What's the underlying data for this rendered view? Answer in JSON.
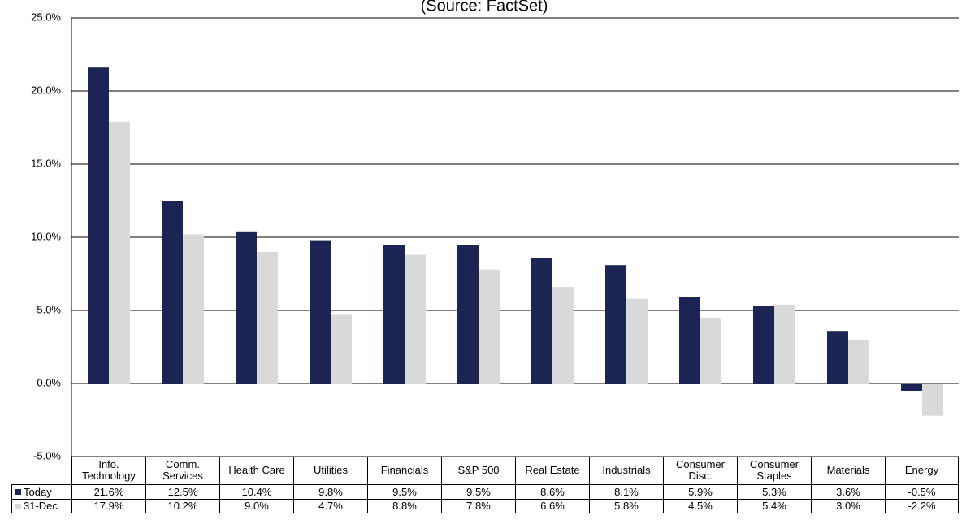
{
  "chart_data": {
    "type": "bar",
    "subtitle": "(Source: FactSet)",
    "categories": [
      "Info. Technology",
      "Comm. Services",
      "Health Care",
      "Utilities",
      "Financials",
      "S&P 500",
      "Real Estate",
      "Industrials",
      "Consumer Disc.",
      "Consumer Staples",
      "Materials",
      "Energy"
    ],
    "series": [
      {
        "name": "Today",
        "color": "#1b2452",
        "values": [
          21.6,
          12.5,
          10.4,
          9.8,
          9.5,
          9.5,
          8.6,
          8.1,
          5.9,
          5.3,
          3.6,
          -0.5
        ],
        "value_labels": [
          "21.6%",
          "12.5%",
          "10.4%",
          "9.8%",
          "9.5%",
          "9.5%",
          "8.6%",
          "8.1%",
          "5.9%",
          "5.3%",
          "3.6%",
          "-0.5%"
        ]
      },
      {
        "name": "31-Dec",
        "color": "#d9d9d9",
        "values": [
          17.9,
          10.2,
          9.0,
          4.7,
          8.8,
          7.8,
          6.6,
          5.8,
          4.5,
          5.4,
          3.0,
          -2.2
        ],
        "value_labels": [
          "17.9%",
          "10.2%",
          "9.0%",
          "4.7%",
          "8.8%",
          "7.8%",
          "6.6%",
          "5.8%",
          "4.5%",
          "5.4%",
          "3.0%",
          "-2.2%"
        ]
      }
    ],
    "ylim": [
      -5,
      25
    ],
    "yticks": [
      {
        "value": -5,
        "label": "-5.0%"
      },
      {
        "value": 0,
        "label": "0.0%"
      },
      {
        "value": 5,
        "label": "5.0%"
      },
      {
        "value": 10,
        "label": "10.0%"
      },
      {
        "value": 15,
        "label": "15.0%"
      },
      {
        "value": 20,
        "label": "20.0%"
      },
      {
        "value": 25,
        "label": "25.0%"
      }
    ],
    "grid": true
  }
}
